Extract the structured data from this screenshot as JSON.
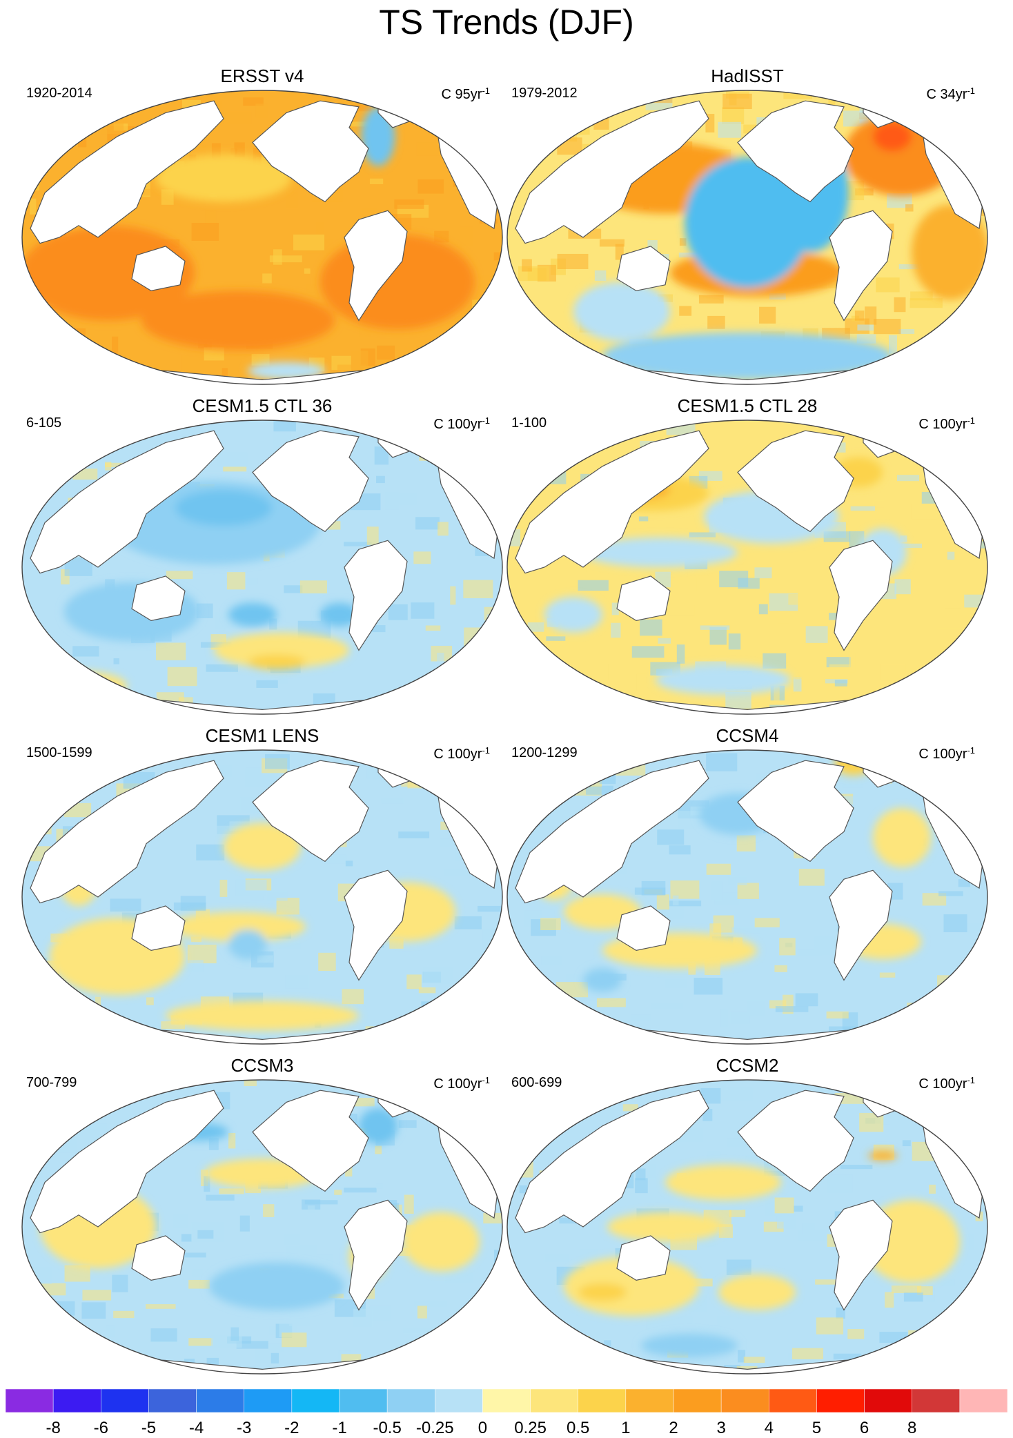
{
  "title": "TS Trends (DJF)",
  "panels": [
    {
      "title": "ERSST v4",
      "period": "1920-2014",
      "units_prefix": "C 95yr",
      "units_exp": "-1",
      "bg": "#fbb12e",
      "pattern": "warm",
      "blobs": [
        [
          "#fb8d1f",
          0.18,
          0.62,
          0.18,
          0.16
        ],
        [
          "#fb8d1f",
          0.78,
          0.65,
          0.16,
          0.16
        ],
        [
          "#fb8d1f",
          0.45,
          0.78,
          0.2,
          0.1
        ],
        [
          "#fcd34b",
          0.42,
          0.3,
          0.14,
          0.08
        ],
        [
          "#70c4f0",
          0.74,
          0.16,
          0.035,
          0.1
        ],
        [
          "#b7e1f6",
          0.55,
          0.95,
          0.08,
          0.03
        ]
      ]
    },
    {
      "title": "HadISST",
      "period": "1979-2012",
      "units_prefix": "C 34yr",
      "units_exp": "-1",
      "bg": "#fde57b",
      "pattern": "pdo",
      "blobs": [
        [
          "#fb9d1f",
          0.33,
          0.3,
          0.18,
          0.12
        ],
        [
          "#fb9d1f",
          0.52,
          0.62,
          0.18,
          0.08
        ],
        [
          "#fb8d1f",
          0.82,
          0.22,
          0.12,
          0.14
        ],
        [
          "#ff5a14",
          0.8,
          0.16,
          0.04,
          0.05
        ],
        [
          "#50bdf0",
          0.5,
          0.45,
          0.13,
          0.22
        ],
        [
          "#50bdf0",
          0.63,
          0.35,
          0.08,
          0.2
        ],
        [
          "#8fd0f3",
          0.5,
          0.9,
          0.3,
          0.08
        ],
        [
          "#b7e1f6",
          0.24,
          0.75,
          0.1,
          0.1
        ],
        [
          "#fbb12e",
          0.92,
          0.55,
          0.08,
          0.16
        ]
      ]
    },
    {
      "title": "CESM1.5 CTL 36",
      "period": "6-105",
      "units_prefix": "C 100yr",
      "units_exp": "-1",
      "bg": "#b7e1f6",
      "pattern": "cool",
      "blobs": [
        [
          "#8fd0f3",
          0.4,
          0.35,
          0.22,
          0.14
        ],
        [
          "#70c4f0",
          0.42,
          0.3,
          0.1,
          0.06
        ],
        [
          "#8fd0f3",
          0.23,
          0.65,
          0.14,
          0.1
        ],
        [
          "#70c4f0",
          0.48,
          0.66,
          0.05,
          0.04
        ],
        [
          "#70c4f0",
          0.66,
          0.66,
          0.04,
          0.04
        ],
        [
          "#fde57b",
          0.54,
          0.78,
          0.14,
          0.06
        ],
        [
          "#fcd34b",
          0.53,
          0.82,
          0.06,
          0.025
        ],
        [
          "#fde57b",
          0.12,
          0.9,
          0.1,
          0.05
        ],
        [
          "#fde57b",
          0.1,
          0.4,
          0.04,
          0.05
        ]
      ]
    },
    {
      "title": "CESM1.5 CTL 28",
      "period": "1-100",
      "units_prefix": "C 100yr",
      "units_exp": "-1",
      "bg": "#fde57b",
      "pattern": "mixed",
      "blobs": [
        [
          "#fcd34b",
          0.3,
          0.25,
          0.12,
          0.06
        ],
        [
          "#fbb12e",
          0.28,
          0.24,
          0.06,
          0.03
        ],
        [
          "#b7e1f6",
          0.55,
          0.33,
          0.14,
          0.09
        ],
        [
          "#b7e1f6",
          0.32,
          0.45,
          0.16,
          0.05
        ],
        [
          "#b7e1f6",
          0.78,
          0.45,
          0.05,
          0.08
        ],
        [
          "#b7e1f6",
          0.45,
          0.88,
          0.14,
          0.05
        ],
        [
          "#fcd34b",
          0.73,
          0.18,
          0.05,
          0.05
        ],
        [
          "#b7e1f6",
          0.14,
          0.66,
          0.06,
          0.06
        ]
      ]
    },
    {
      "title": "CESM1 LENS",
      "period": "1500-1599",
      "units_prefix": "C 100yr",
      "units_exp": "-1",
      "bg": "#b7e1f6",
      "pattern": "mixed",
      "blobs": [
        [
          "#fde57b",
          0.2,
          0.7,
          0.14,
          0.13
        ],
        [
          "#fde57b",
          0.45,
          0.6,
          0.14,
          0.05
        ],
        [
          "#fde57b",
          0.8,
          0.55,
          0.1,
          0.1
        ],
        [
          "#fde57b",
          0.5,
          0.33,
          0.08,
          0.08
        ],
        [
          "#8fd0f3",
          0.47,
          0.66,
          0.04,
          0.05
        ],
        [
          "#fde57b",
          0.5,
          0.9,
          0.2,
          0.05
        ],
        [
          "#fde57b",
          0.12,
          0.45,
          0.04,
          0.08
        ]
      ]
    },
    {
      "title": "CCSM4",
      "period": "1200-1299",
      "units_prefix": "C 100yr",
      "units_exp": "-1",
      "bg": "#b7e1f6",
      "pattern": "cool",
      "blobs": [
        [
          "#8fd0f3",
          0.48,
          0.22,
          0.08,
          0.07
        ],
        [
          "#fde57b",
          0.36,
          0.68,
          0.16,
          0.06
        ],
        [
          "#fde57b",
          0.2,
          0.55,
          0.08,
          0.06
        ],
        [
          "#fde57b",
          0.82,
          0.3,
          0.06,
          0.1
        ],
        [
          "#fde57b",
          0.1,
          0.45,
          0.04,
          0.06
        ],
        [
          "#fcd34b",
          0.72,
          0.05,
          0.04,
          0.04
        ],
        [
          "#8fd0f3",
          0.2,
          0.78,
          0.04,
          0.04
        ],
        [
          "#fde57b",
          0.78,
          0.65,
          0.08,
          0.06
        ]
      ]
    },
    {
      "title": "CCSM3",
      "period": "700-799",
      "units_prefix": "C 100yr",
      "units_exp": "-1",
      "bg": "#b7e1f6",
      "pattern": "mixed",
      "blobs": [
        [
          "#fde57b",
          0.16,
          0.5,
          0.12,
          0.14
        ],
        [
          "#fde57b",
          0.5,
          0.32,
          0.12,
          0.05
        ],
        [
          "#8fd0f3",
          0.53,
          0.7,
          0.14,
          0.08
        ],
        [
          "#70c4f0",
          0.37,
          0.18,
          0.06,
          0.03
        ],
        [
          "#70c4f0",
          0.74,
          0.16,
          0.04,
          0.06
        ],
        [
          "#fde57b",
          0.72,
          0.6,
          0.04,
          0.08
        ],
        [
          "#fde57b",
          0.87,
          0.55,
          0.08,
          0.1
        ]
      ]
    },
    {
      "title": "CCSM2",
      "period": "600-699",
      "units_prefix": "C 100yr",
      "units_exp": "-1",
      "bg": "#b7e1f6",
      "pattern": "mixed",
      "blobs": [
        [
          "#fde57b",
          0.45,
          0.35,
          0.12,
          0.06
        ],
        [
          "#fde57b",
          0.33,
          0.5,
          0.12,
          0.05
        ],
        [
          "#fde57b",
          0.26,
          0.7,
          0.14,
          0.1
        ],
        [
          "#fcd34b",
          0.2,
          0.72,
          0.05,
          0.03
        ],
        [
          "#fde57b",
          0.52,
          0.72,
          0.08,
          0.06
        ],
        [
          "#fde57b",
          0.84,
          0.55,
          0.1,
          0.14
        ],
        [
          "#8fd0f3",
          0.38,
          0.9,
          0.1,
          0.04
        ],
        [
          "#fbb12e",
          0.78,
          0.26,
          0.03,
          0.015
        ]
      ]
    }
  ],
  "colorbar": {
    "colors": [
      "#8a2be2",
      "#3c1bf2",
      "#1e32f0",
      "#3c64dc",
      "#2c7ce8",
      "#1e9bf5",
      "#14b7f5",
      "#50bdf0",
      "#8fd0f3",
      "#b7e1f6",
      "#fff6a8",
      "#fde57b",
      "#fcd34b",
      "#fbb12e",
      "#fb9d1f",
      "#fb8d1f",
      "#ff5a14",
      "#ff1e00",
      "#e10a0a",
      "#d23737",
      "#ffb6b6"
    ],
    "labels": [
      "-8",
      "-6",
      "-5",
      "-4",
      "-3",
      "-2",
      "-1",
      "-0.5",
      "-0.25",
      "0",
      "0.25",
      "0.5",
      "1",
      "2",
      "3",
      "4",
      "5",
      "6",
      "8"
    ]
  }
}
